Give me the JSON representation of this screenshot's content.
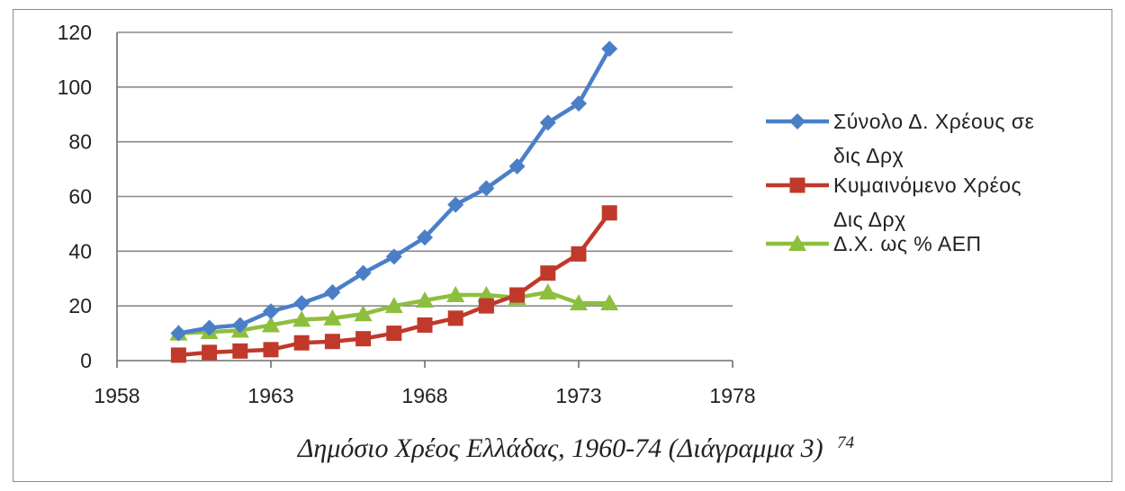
{
  "chart_data": {
    "type": "line",
    "title": "Δημόσιο Χρέος Ελλάδας, 1960-74 (Διάγραμμα 3)",
    "footnote_ref": "74",
    "xlabel": "",
    "ylabel": "",
    "xlim": [
      1958,
      1978
    ],
    "ylim": [
      0,
      120
    ],
    "x_ticks": [
      1958,
      1963,
      1968,
      1973,
      1978
    ],
    "y_ticks": [
      0,
      20,
      40,
      60,
      80,
      100,
      120
    ],
    "grid": "horizontal",
    "legend_position": "right",
    "x": [
      1960,
      1961,
      1962,
      1963,
      1964,
      1965,
      1966,
      1967,
      1968,
      1969,
      1970,
      1971,
      1972,
      1973,
      1974
    ],
    "series": [
      {
        "name_lines": [
          "Σύνολο Δ. Χρέους σε",
          "δις Δρχ"
        ],
        "color": "#4a7fc8",
        "marker": "diamond",
        "values": [
          10,
          12,
          13,
          18,
          21,
          25,
          32,
          38,
          45,
          57,
          63,
          71,
          87,
          94,
          114
        ]
      },
      {
        "name_lines": [
          "Κυμαινόμενο Χρέος",
          "Δις Δρχ"
        ],
        "color": "#c0392b",
        "marker": "square",
        "values": [
          2,
          3,
          3.5,
          4,
          6.5,
          7,
          8,
          10,
          13,
          15.5,
          20,
          24,
          32,
          39,
          54
        ]
      },
      {
        "name_lines": [
          "Δ.Χ. ως % ΑΕΠ"
        ],
        "color": "#8dbf3e",
        "marker": "triangle",
        "values": [
          10,
          10.5,
          11,
          13,
          15,
          15.5,
          17,
          20,
          22,
          24,
          24,
          23,
          25,
          21,
          21
        ]
      }
    ]
  }
}
